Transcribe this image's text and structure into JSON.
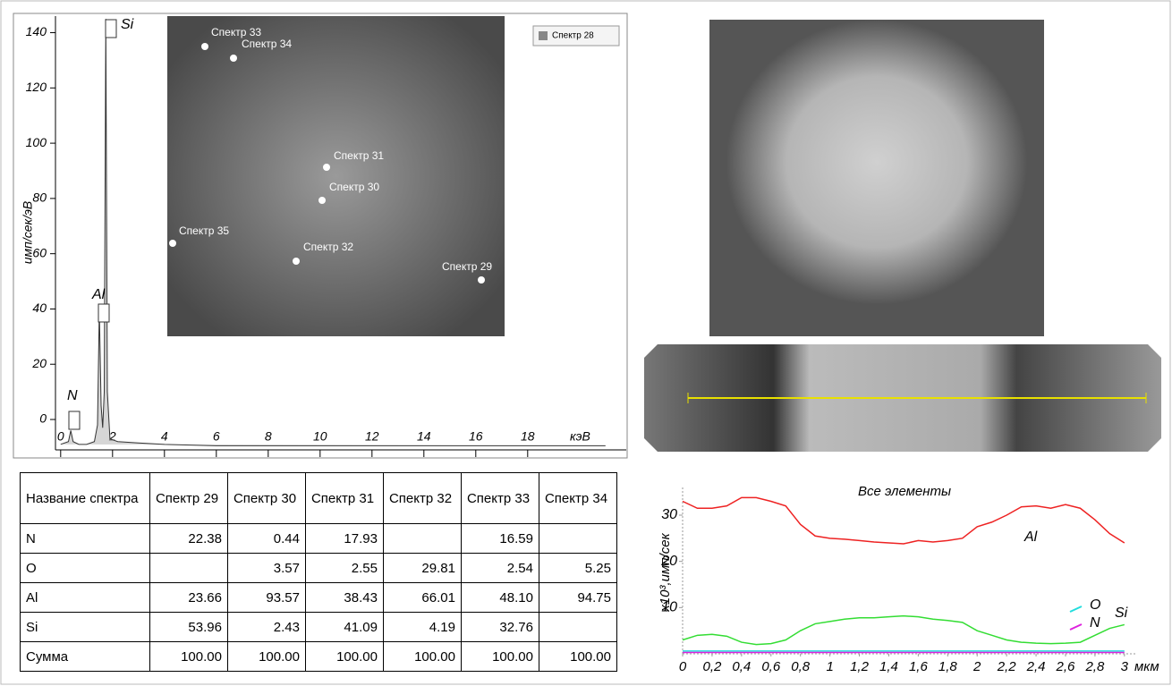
{
  "chart_data": [
    {
      "type": "line",
      "y_label": "имп/сек/эВ",
      "x_unit": "кэВ",
      "x": [
        0,
        0.3,
        0.39,
        0.48,
        0.7,
        1.0,
        1.3,
        1.42,
        1.49,
        1.56,
        1.62,
        1.68,
        1.74,
        1.8,
        1.9,
        2.2,
        3,
        4,
        6,
        10,
        14,
        18,
        21
      ],
      "series": [
        {
          "name": "Спектр 28",
          "color": "#888888",
          "values": [
            -9,
            -8,
            -4,
            -8,
            -9,
            -9,
            -8,
            -2,
            40,
            5,
            -3,
            10,
            145,
            10,
            -7,
            -8,
            -8.5,
            -9,
            -9.5,
            -9.5,
            -9.5,
            -9.5,
            -9.5
          ]
        }
      ],
      "peak_labels": [
        "N",
        "Al",
        "Si"
      ],
      "xlim": [
        -0.2,
        21.8
      ],
      "ylim": [
        -11,
        146
      ],
      "xticks": [
        0,
        2,
        4,
        6,
        8,
        10,
        12,
        14,
        16,
        18
      ],
      "yticks": [
        0,
        20,
        40,
        60,
        80,
        100,
        120,
        140
      ],
      "inset_labels": [
        "Спектр 33",
        "Спектр 34",
        "Спектр 31",
        "Спектр 30",
        "Спектр 35",
        "Спектр 32",
        "Спектр 29"
      ]
    },
    {
      "type": "line",
      "title": "Все элементы",
      "y_label": "x10³,имп/сек",
      "x_unit": "мкм",
      "x": [
        0,
        0.1,
        0.2,
        0.3,
        0.4,
        0.5,
        0.6,
        0.7,
        0.8,
        0.9,
        1.0,
        1.1,
        1.2,
        1.3,
        1.4,
        1.5,
        1.6,
        1.7,
        1.8,
        1.9,
        2.0,
        2.1,
        2.2,
        2.3,
        2.4,
        2.5,
        2.6,
        2.7,
        2.8,
        2.9,
        3.0
      ],
      "series": [
        {
          "name": "Al",
          "color": "#ee2222",
          "values": [
            33,
            31.5,
            31.5,
            32,
            33.8,
            33.8,
            33,
            32,
            28,
            25.5,
            25,
            24.8,
            24.5,
            24.2,
            24,
            23.8,
            24.5,
            24.2,
            24.5,
            25,
            27.5,
            28.5,
            30,
            31.8,
            32,
            31.5,
            32.3,
            31.5,
            29,
            26,
            24
          ]
        },
        {
          "name": "Si",
          "color": "#33dd33",
          "values": [
            3,
            4,
            4.2,
            3.8,
            2.5,
            2,
            2.2,
            3,
            5,
            6.5,
            7,
            7.5,
            7.8,
            7.8,
            8,
            8.2,
            8,
            7.5,
            7.2,
            6.8,
            5,
            4,
            3,
            2.5,
            2.3,
            2.2,
            2.3,
            2.5,
            4,
            5.5,
            6.3
          ]
        },
        {
          "name": "O",
          "color": "#22dddd",
          "values": [
            0.6,
            0.6,
            0.6,
            0.6,
            0.6,
            0.6,
            0.6,
            0.6,
            0.6,
            0.6,
            0.6,
            0.6,
            0.6,
            0.6,
            0.6,
            0.6,
            0.6,
            0.6,
            0.6,
            0.6,
            0.6,
            0.6,
            0.6,
            0.6,
            0.6,
            0.6,
            0.6,
            0.6,
            0.6,
            0.6,
            0.6
          ]
        },
        {
          "name": "N",
          "color": "#dd22dd",
          "values": [
            0.3,
            0.3,
            0.3,
            0.3,
            0.3,
            0.3,
            0.3,
            0.3,
            0.3,
            0.3,
            0.3,
            0.3,
            0.3,
            0.3,
            0.3,
            0.3,
            0.3,
            0.3,
            0.3,
            0.3,
            0.3,
            0.3,
            0.3,
            0.3,
            0.3,
            0.3,
            0.3,
            0.3,
            0.3,
            0.3,
            0.3
          ]
        }
      ],
      "xlim": [
        0,
        3.08
      ],
      "ylim": [
        0,
        36
      ],
      "xticks": [
        0,
        {
          "value": 0.2,
          "label": "0,2"
        },
        {
          "value": 0.4,
          "label": "0,4"
        },
        {
          "value": 0.6,
          "label": "0,6"
        },
        {
          "value": 0.8,
          "label": "0,8"
        },
        1,
        {
          "value": 1.2,
          "label": "1,2"
        },
        {
          "value": 1.4,
          "label": "1,4"
        },
        {
          "value": 1.6,
          "label": "1,6"
        },
        {
          "value": 1.8,
          "label": "1,8"
        },
        2,
        {
          "value": 2.2,
          "label": "2,2"
        },
        {
          "value": 2.4,
          "label": "2,4"
        },
        {
          "value": 2.6,
          "label": "2,6"
        },
        {
          "value": 2.8,
          "label": "2,8"
        },
        3
      ],
      "yticks": [
        10,
        20,
        30
      ]
    }
  ],
  "table": {
    "header": [
      "Название спектра",
      "Спектр 29",
      "Спектр 30",
      "Спектр 31",
      "Спектр 32",
      "Спектр 33",
      "Спектр 34"
    ],
    "rows": [
      [
        "N",
        "22.38",
        "0.44",
        "17.93",
        null,
        "16.59",
        null
      ],
      [
        "O",
        null,
        "3.57",
        "2.55",
        "29.81",
        "2.54",
        "5.25"
      ],
      [
        "Al",
        "23.66",
        "93.57",
        "38.43",
        "66.01",
        "48.10",
        "94.75"
      ],
      [
        "Si",
        "53.96",
        "2.43",
        "41.09",
        "4.19",
        "32.76",
        null
      ],
      [
        "Сумма",
        "100.00",
        "100.00",
        "100.00",
        "100.00",
        "100.00",
        "100.00"
      ]
    ]
  }
}
